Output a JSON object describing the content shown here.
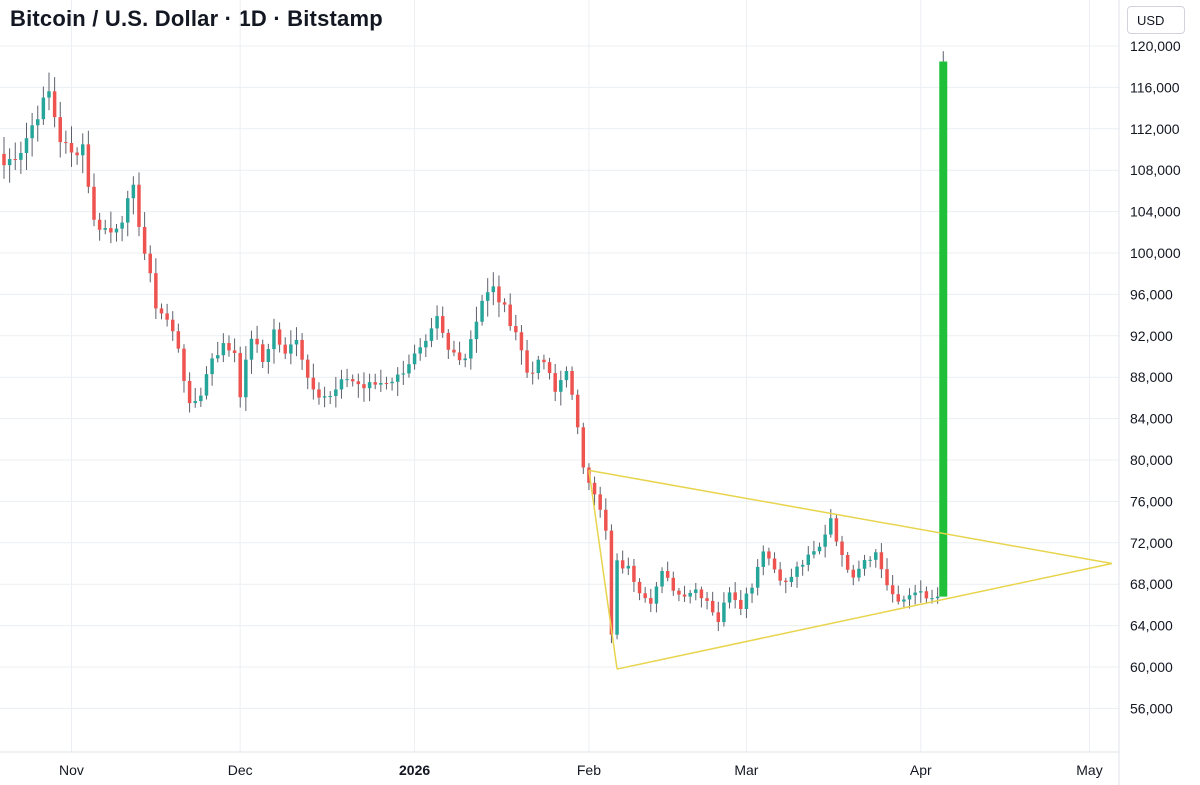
{
  "header": {
    "title": "Bitcoin / U.S. Dollar · 1D · Bitstamp",
    "currency": "USD"
  },
  "colors": {
    "up": "#26a69a",
    "down": "#ef5350",
    "projection": "#1fbf3a",
    "triangle": "#e8d44d",
    "grid": "#eceff3"
  },
  "chart_data": {
    "type": "candlestick",
    "ylim": [
      52000,
      122000
    ],
    "y_ticks": [
      56000,
      60000,
      64000,
      68000,
      72000,
      76000,
      80000,
      84000,
      88000,
      92000,
      96000,
      100000,
      104000,
      108000,
      112000,
      116000,
      120000
    ],
    "y_tick_labels": [
      "56,000",
      "60,000",
      "64,000",
      "68,000",
      "72,000",
      "76,000",
      "80,000",
      "84,000",
      "88,000",
      "92,000",
      "96,000",
      "100,000",
      "104,000",
      "108,000",
      "112,000",
      "116,000",
      "120,000"
    ],
    "xlim": [
      "2025-10-20",
      "2026-05-05"
    ],
    "x_ticks": [
      {
        "date": "2025-11-01",
        "label": "Nov",
        "bold": false
      },
      {
        "date": "2025-12-01",
        "label": "Dec",
        "bold": false
      },
      {
        "date": "2026-01-01",
        "label": "2026",
        "bold": true
      },
      {
        "date": "2026-02-01",
        "label": "Feb",
        "bold": false
      },
      {
        "date": "2026-03-01",
        "label": "Mar",
        "bold": false
      },
      {
        "date": "2026-04-01",
        "label": "Apr",
        "bold": false
      },
      {
        "date": "2026-05-01",
        "label": "May",
        "bold": false
      }
    ],
    "anchor_closes": [
      [
        "2025-10-20",
        108500
      ],
      [
        "2025-10-23",
        110000
      ],
      [
        "2025-10-26",
        113500
      ],
      [
        "2025-10-28",
        115500
      ],
      [
        "2025-10-30",
        111000
      ],
      [
        "2025-11-01",
        109500
      ],
      [
        "2025-11-03",
        110500
      ],
      [
        "2025-11-05",
        103000
      ],
      [
        "2025-11-08",
        102000
      ],
      [
        "2025-11-10",
        103500
      ],
      [
        "2025-11-12",
        106000
      ],
      [
        "2025-11-14",
        100000
      ],
      [
        "2025-11-16",
        95000
      ],
      [
        "2025-11-18",
        93500
      ],
      [
        "2025-11-20",
        91000
      ],
      [
        "2025-11-22",
        85000
      ],
      [
        "2025-11-24",
        86500
      ],
      [
        "2025-11-26",
        90000
      ],
      [
        "2025-11-28",
        91000
      ],
      [
        "2025-11-30",
        90500
      ],
      [
        "2025-12-01",
        86500
      ],
      [
        "2025-12-03",
        92000
      ],
      [
        "2025-12-05",
        89500
      ],
      [
        "2025-12-07",
        92500
      ],
      [
        "2025-12-09",
        90000
      ],
      [
        "2025-12-11",
        92000
      ],
      [
        "2025-12-13",
        88000
      ],
      [
        "2025-12-15",
        86500
      ],
      [
        "2025-12-17",
        86000
      ],
      [
        "2025-12-20",
        88000
      ],
      [
        "2025-12-23",
        87000
      ],
      [
        "2025-12-26",
        87500
      ],
      [
        "2025-12-29",
        88000
      ],
      [
        "2025-12-31",
        89500
      ],
      [
        "2026-01-03",
        91000
      ],
      [
        "2026-01-05",
        93500
      ],
      [
        "2026-01-07",
        90500
      ],
      [
        "2026-01-10",
        90000
      ],
      [
        "2026-01-13",
        95500
      ],
      [
        "2026-01-15",
        96500
      ],
      [
        "2026-01-17",
        94500
      ],
      [
        "2026-01-19",
        92500
      ],
      [
        "2026-01-21",
        88500
      ],
      [
        "2026-01-24",
        89500
      ],
      [
        "2026-01-26",
        86500
      ],
      [
        "2026-01-28",
        89000
      ],
      [
        "2026-01-29",
        86000
      ],
      [
        "2026-01-31",
        79500
      ],
      [
        "2026-02-02",
        77000
      ],
      [
        "2026-02-04",
        73000
      ],
      [
        "2026-02-05",
        63000
      ],
      [
        "2026-02-06",
        70000
      ],
      [
        "2026-02-08",
        69500
      ],
      [
        "2026-02-10",
        67500
      ],
      [
        "2026-02-12",
        66500
      ],
      [
        "2026-02-14",
        69000
      ],
      [
        "2026-02-17",
        67000
      ],
      [
        "2026-02-20",
        67500
      ],
      [
        "2026-02-22",
        66500
      ],
      [
        "2026-02-24",
        64500
      ],
      [
        "2026-02-26",
        67500
      ],
      [
        "2026-02-28",
        66000
      ],
      [
        "2026-03-02",
        68000
      ],
      [
        "2026-03-04",
        71500
      ],
      [
        "2026-03-06",
        69500
      ],
      [
        "2026-03-08",
        68000
      ],
      [
        "2026-03-10",
        69500
      ],
      [
        "2026-03-12",
        70500
      ],
      [
        "2026-03-14",
        71500
      ],
      [
        "2026-03-16",
        74500
      ],
      [
        "2026-03-18",
        70500
      ],
      [
        "2026-03-20",
        69000
      ],
      [
        "2026-03-22",
        70500
      ],
      [
        "2026-03-24",
        71000
      ],
      [
        "2026-03-26",
        68000
      ],
      [
        "2026-03-28",
        66000
      ],
      [
        "2026-03-31",
        67500
      ],
      [
        "2026-04-02",
        66500
      ],
      [
        "2026-04-04",
        66800
      ]
    ],
    "projection_bar": {
      "date": "2026-04-05",
      "open": 66800,
      "close": 118500,
      "high": 119500
    },
    "triangle": {
      "upper_start": [
        "2026-02-01",
        79000
      ],
      "lower_start": [
        "2026-02-06",
        59800
      ],
      "apex": [
        "2026-05-05",
        70000
      ]
    }
  }
}
